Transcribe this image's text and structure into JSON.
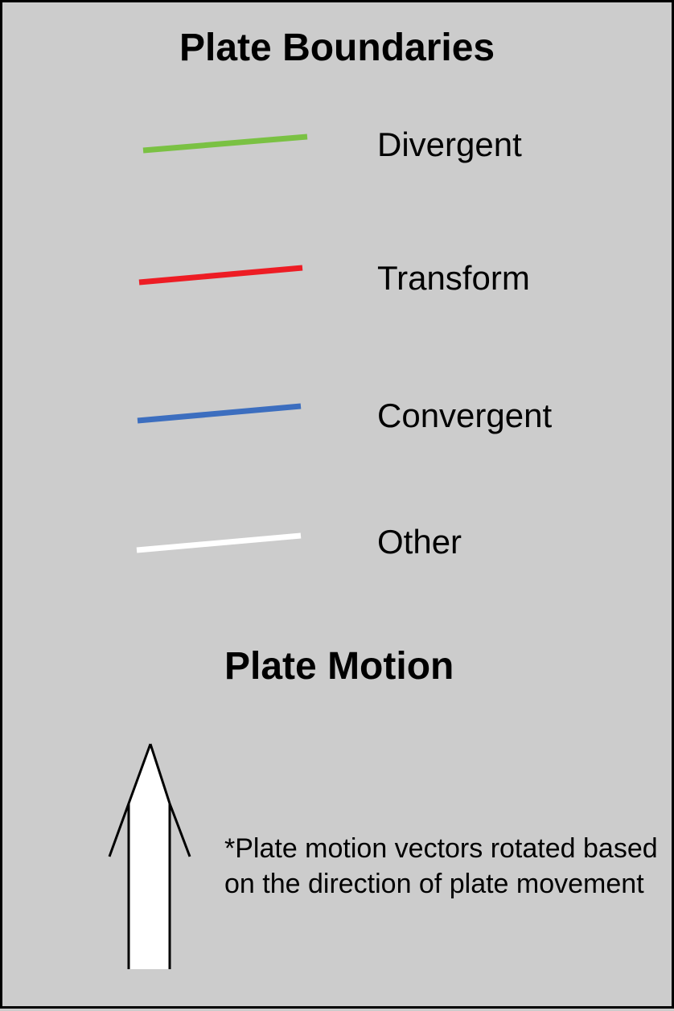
{
  "boundaries": {
    "title": "Plate Boundaries",
    "items": [
      {
        "label": "Divergent",
        "color": "#7ac143",
        "icon": "green-line-icon"
      },
      {
        "label": "Transform",
        "color": "#ed1c24",
        "icon": "red-line-icon"
      },
      {
        "label": "Convergent",
        "color": "#3c6ebf",
        "icon": "blue-line-icon"
      },
      {
        "label": "Other",
        "color": "#ffffff",
        "icon": "white-line-icon"
      }
    ]
  },
  "motion": {
    "title": "Plate Motion",
    "icon": "arrow-up-icon",
    "note": "*Plate motion vectors rotated based on the direction of plate movement"
  },
  "colors": {
    "background": "#cccccc",
    "border": "#000000",
    "arrow_outline": "#000000",
    "arrow_fill": "#ffffff"
  }
}
